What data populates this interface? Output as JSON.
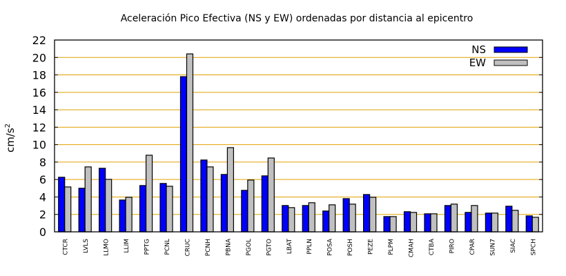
{
  "chart_data": {
    "type": "bar",
    "title": "Aceleración Pico Efectiva (NS y EW) ordenadas por distancia al epicentro",
    "xlabel": "",
    "ylabel": "cm/s",
    "ylabel_sup": "2",
    "ylim": [
      0,
      22
    ],
    "yticks": [
      0,
      2,
      4,
      6,
      8,
      10,
      12,
      14,
      16,
      18,
      20,
      22
    ],
    "grid": true,
    "legend": "top-right",
    "categories": [
      "CTCR",
      "LVLS",
      "LLMO",
      "LLIM",
      "PPTG",
      "PCNL",
      "CRUC",
      "PCNH",
      "PBNA",
      "PGOL",
      "PGTO",
      "LBAT",
      "PPLN",
      "POSA",
      "POSH",
      "PEZE",
      "PLPM",
      "CMAH",
      "CTBA",
      "PIRO",
      "CPAR",
      "SUN7",
      "SIAC",
      "SPCH"
    ],
    "series": [
      {
        "name": "NS",
        "color": "#0000ff",
        "values": [
          6.26,
          5.0,
          7.29,
          3.65,
          5.31,
          5.55,
          17.8,
          8.24,
          6.58,
          4.76,
          6.42,
          3.02,
          3.02,
          2.39,
          3.81,
          4.28,
          1.75,
          2.31,
          2.07,
          3.02,
          2.23,
          2.15,
          2.94,
          1.83
        ]
      },
      {
        "name": "EW",
        "color": "#c0c0c0",
        "values": [
          5.15,
          7.45,
          6.02,
          3.97,
          8.79,
          5.23,
          20.41,
          7.45,
          9.66,
          5.94,
          8.47,
          2.78,
          3.34,
          3.1,
          3.18,
          3.97,
          1.75,
          2.23,
          2.07,
          3.18,
          3.02,
          2.15,
          2.47,
          1.67
        ]
      }
    ],
    "grid_color": "#e0a000"
  }
}
